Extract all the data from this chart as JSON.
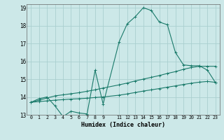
{
  "xlabel": "Humidex (Indice chaleur)",
  "bg_color": "#cce8e8",
  "grid_color": "#aacfcf",
  "line_color": "#1a7a6a",
  "xlim": [
    -0.5,
    23.5
  ],
  "ylim": [
    13,
    19.2
  ],
  "yticks": [
    13,
    14,
    15,
    16,
    17,
    18,
    19
  ],
  "xticks": [
    0,
    1,
    2,
    3,
    4,
    5,
    6,
    7,
    8,
    9,
    11,
    12,
    13,
    14,
    15,
    16,
    17,
    18,
    19,
    20,
    21,
    22,
    23
  ],
  "curve1_x": [
    0,
    1,
    2,
    3,
    4,
    5,
    6,
    7,
    8,
    9,
    11,
    12,
    13,
    14,
    15,
    16,
    17,
    18,
    19,
    20,
    21,
    22,
    23
  ],
  "curve1_y": [
    13.7,
    13.9,
    14.0,
    13.5,
    12.9,
    13.2,
    13.1,
    13.05,
    15.5,
    13.6,
    17.1,
    18.1,
    18.5,
    19.0,
    18.85,
    18.2,
    18.05,
    16.5,
    15.8,
    15.75,
    15.75,
    15.5,
    14.8
  ],
  "curve2_x": [
    0,
    1,
    2,
    3,
    4,
    5,
    6,
    7,
    8,
    9,
    11,
    12,
    13,
    14,
    15,
    16,
    17,
    18,
    19,
    20,
    21,
    22,
    23
  ],
  "curve2_y": [
    13.7,
    13.82,
    13.94,
    14.06,
    14.12,
    14.18,
    14.24,
    14.32,
    14.4,
    14.5,
    14.68,
    14.78,
    14.9,
    15.0,
    15.1,
    15.2,
    15.32,
    15.42,
    15.55,
    15.65,
    15.72,
    15.72,
    15.72
  ],
  "curve3_x": [
    0,
    1,
    2,
    3,
    4,
    5,
    6,
    7,
    8,
    9,
    11,
    12,
    13,
    14,
    15,
    16,
    17,
    18,
    19,
    20,
    21,
    22,
    23
  ],
  "curve3_y": [
    13.7,
    13.74,
    13.78,
    13.82,
    13.85,
    13.88,
    13.9,
    13.93,
    13.97,
    14.0,
    14.1,
    14.17,
    14.25,
    14.33,
    14.4,
    14.47,
    14.55,
    14.62,
    14.7,
    14.77,
    14.83,
    14.87,
    14.82
  ]
}
